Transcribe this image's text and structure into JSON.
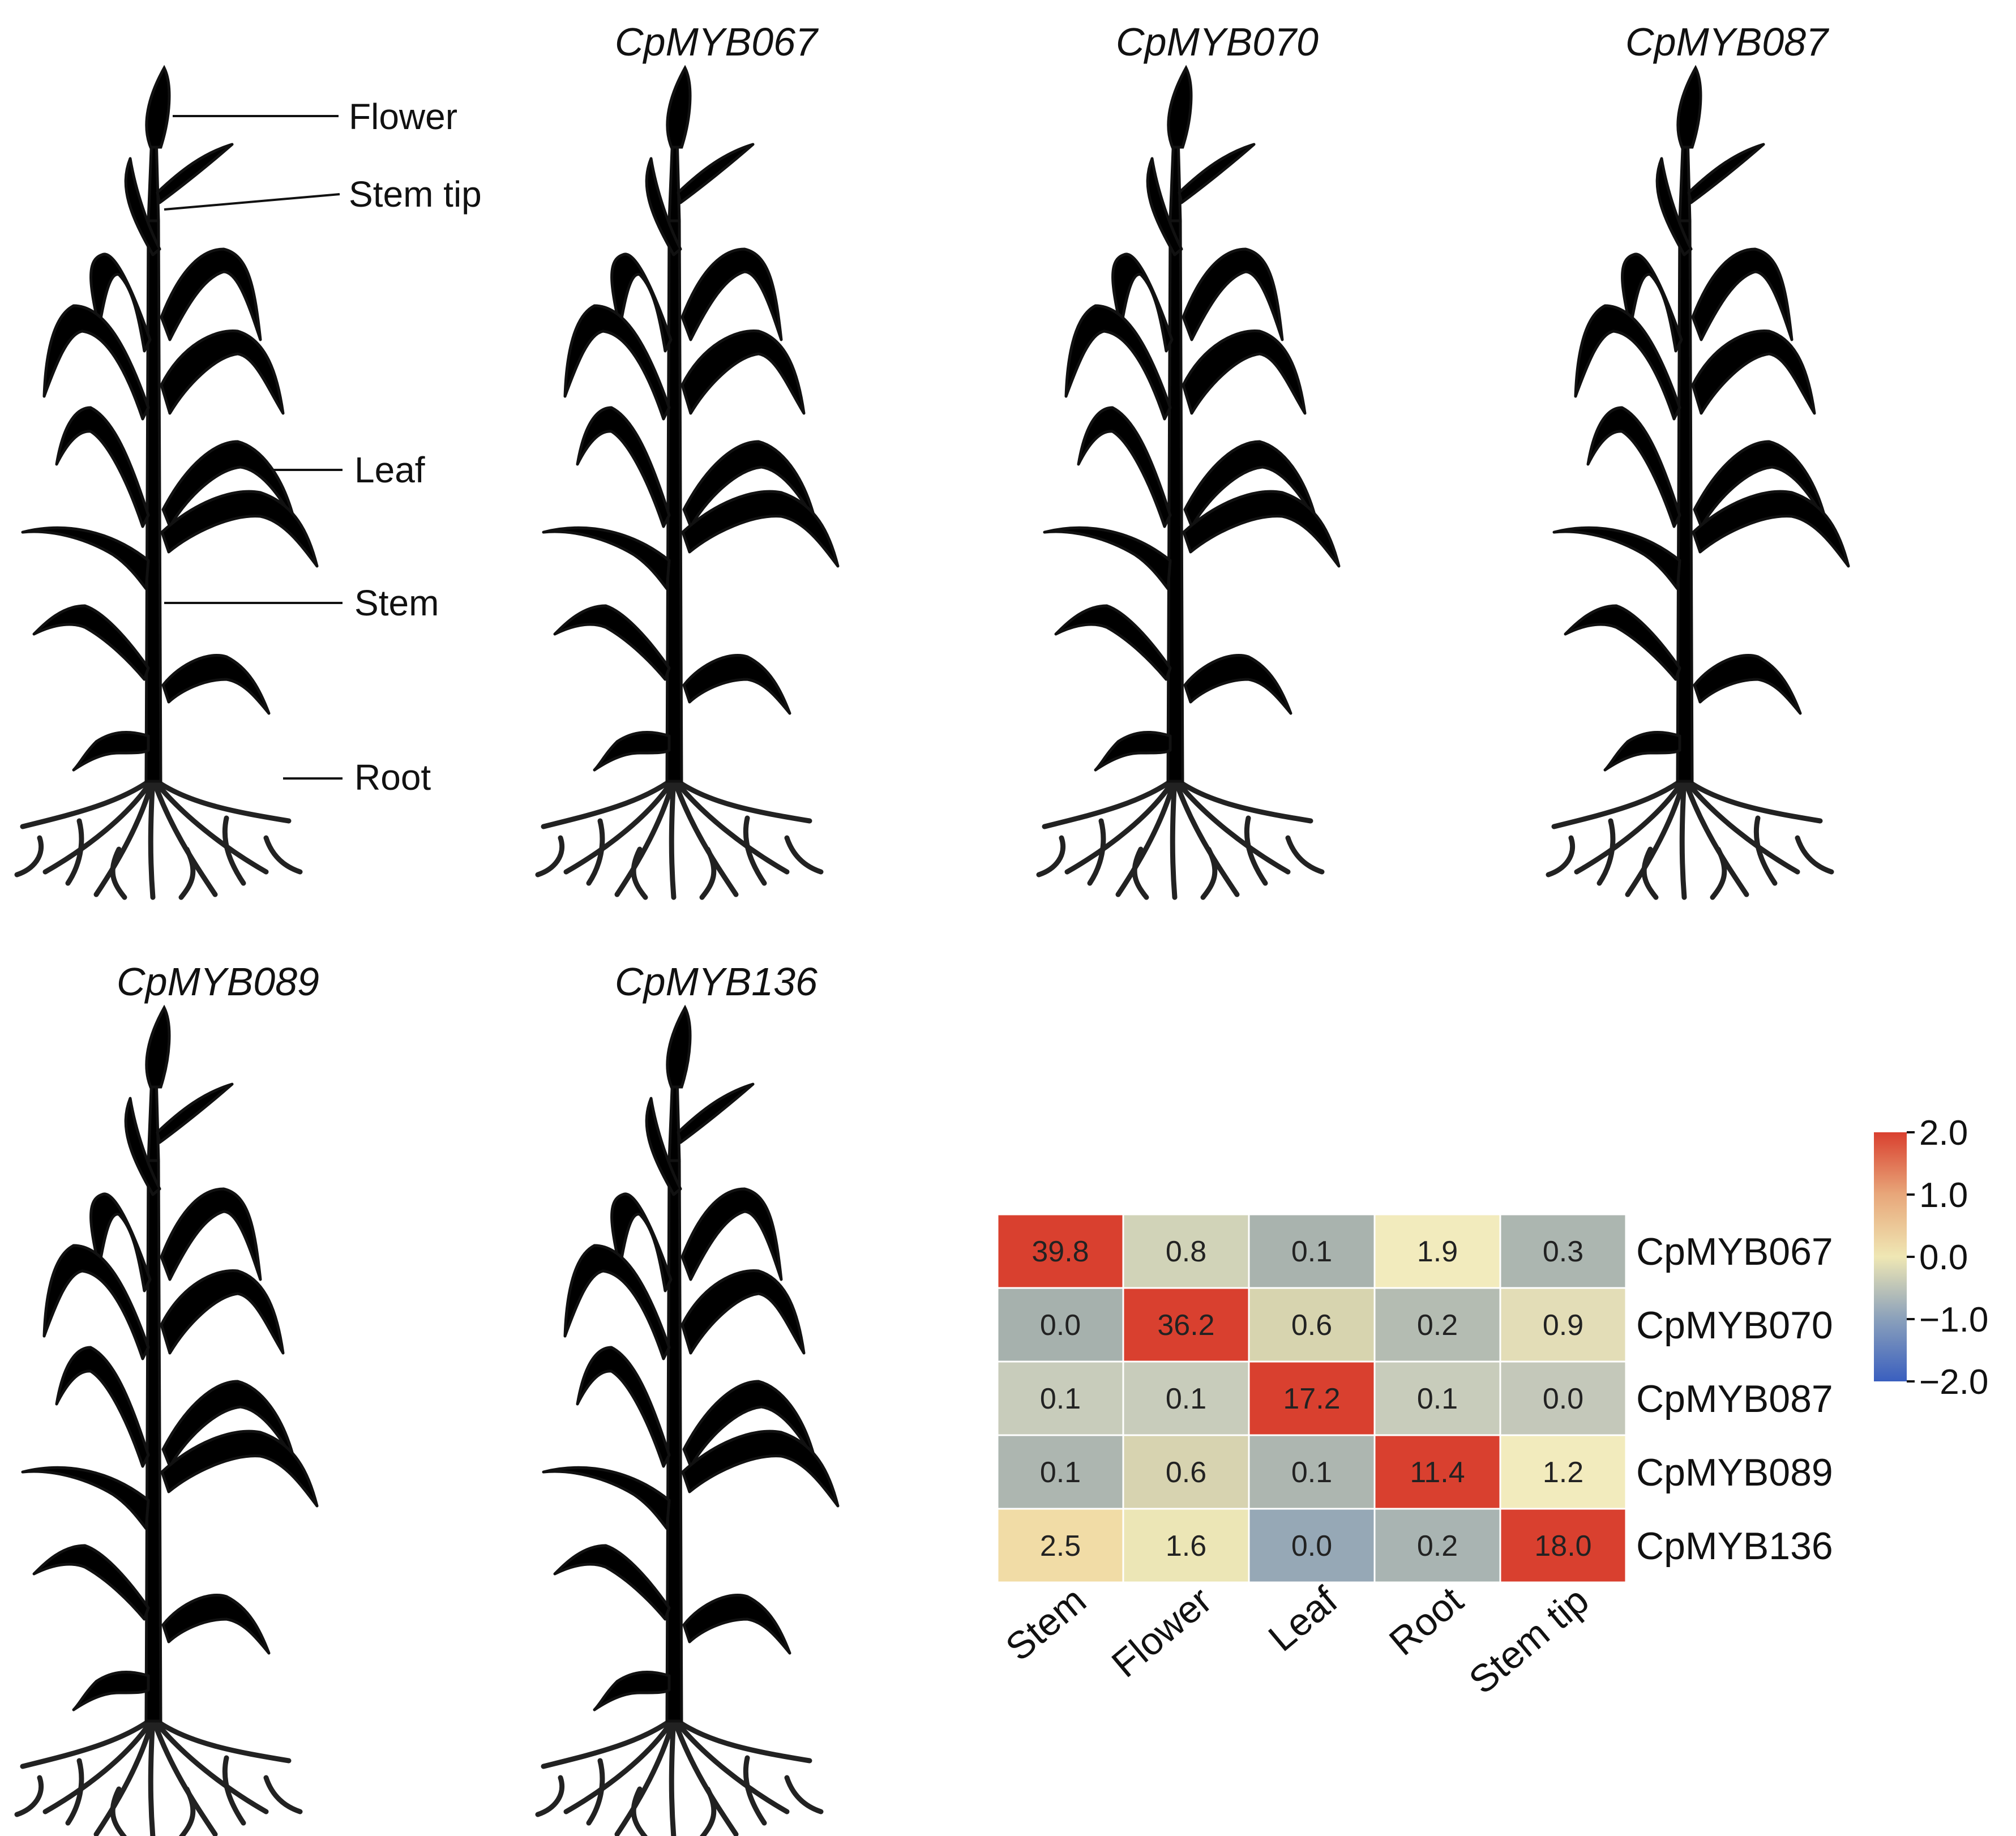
{
  "plants": {
    "legend": {
      "title": "",
      "labels": {
        "flower": "Flower",
        "stem_tip": "Stem tip",
        "leaf": "Leaf",
        "stem": "Stem",
        "root": "Root"
      }
    },
    "panels": [
      {
        "gene": "CpMYB067",
        "colors": {
          "leaf": "#7b94b5",
          "stem": "#d9402f",
          "root": "#e2ddb2",
          "flower": "#a6b0b0",
          "tip": "#7b94b5"
        }
      },
      {
        "gene": "CpMYB070",
        "colors": {
          "leaf": "#b5c0b8",
          "stem": "#7b94b5",
          "root": "#9fb0c4",
          "flower": "#d9402f",
          "tip": "#b5c0b8"
        }
      },
      {
        "gene": "CpMYB087",
        "colors": {
          "leaf": "#d9402f",
          "stem": "#a8b4b0",
          "root": "#a8b4b0",
          "flower": "#b5bfb8",
          "tip": "#d9402f"
        }
      },
      {
        "gene": "CpMYB089",
        "colors": {
          "leaf": "#7b94b5",
          "stem": "#7b94b5",
          "root": "#d9402f",
          "flower": "#b5c0b8",
          "tip": "#efe7b4"
        }
      },
      {
        "gene": "CpMYB136",
        "colors": {
          "leaf": "#7b94b5",
          "stem": "#efe7b4",
          "root": "#8aa0bb",
          "flower": "#c2ccc4",
          "tip": "#d9402f"
        }
      }
    ]
  },
  "chart_data": {
    "type": "heatmap",
    "title": "",
    "columns": [
      "Stem",
      "Flower",
      "Leaf",
      "Root",
      "Stem tip"
    ],
    "rows": [
      "CpMYB067",
      "CpMYB070",
      "CpMYB087",
      "CpMYB089",
      "CpMYB136"
    ],
    "values": [
      [
        39.8,
        0.8,
        0.1,
        1.9,
        0.3
      ],
      [
        0.0,
        36.2,
        0.6,
        0.2,
        0.9
      ],
      [
        0.1,
        0.1,
        17.2,
        0.1,
        0.0
      ],
      [
        0.1,
        0.6,
        0.1,
        11.4,
        1.2
      ],
      [
        2.5,
        1.6,
        0.0,
        0.2,
        18.0
      ]
    ],
    "value_labels": [
      [
        "39.8",
        "0.8",
        "0.1",
        "1.9",
        "0.3"
      ],
      [
        "0.0",
        "36.2",
        "0.6",
        "0.2",
        "0.9"
      ],
      [
        "0.1",
        "0.1",
        "17.2",
        "0.1",
        "0.0"
      ],
      [
        "0.1",
        "0.6",
        "0.1",
        "11.4",
        "1.2"
      ],
      [
        "2.5",
        "1.6",
        "0.0",
        "0.2",
        "18.0"
      ]
    ],
    "cell_colors": [
      [
        "#d9402f",
        "#d1d3b8",
        "#a9b3ae",
        "#f2ebbd",
        "#acb6b0"
      ],
      [
        "#a6b1ad",
        "#d9402f",
        "#d7d4af",
        "#b4bcb2",
        "#e3ddb7"
      ],
      [
        "#c8ccbb",
        "#c8ccbb",
        "#d9402f",
        "#c8ccbb",
        "#c4c8ba"
      ],
      [
        "#adb6b0",
        "#d7d3b0",
        "#adb6b0",
        "#d9402f",
        "#f2ebbd"
      ],
      [
        "#f1dca6",
        "#ece6b6",
        "#96a8b6",
        "#a9b4b2",
        "#d9402f"
      ]
    ],
    "colorbar": {
      "min": -2.0,
      "max": 2.0,
      "ticks": [
        2.0,
        1.0,
        0.0,
        -1.0,
        -2.0
      ],
      "tick_labels": [
        "2.0",
        "1.0",
        "0.0",
        "−1.0",
        "−2.0"
      ],
      "colors": [
        "#3a5fbf",
        "#8aa0bb",
        "#efe7b4",
        "#e8a77a",
        "#d9402f"
      ]
    }
  }
}
